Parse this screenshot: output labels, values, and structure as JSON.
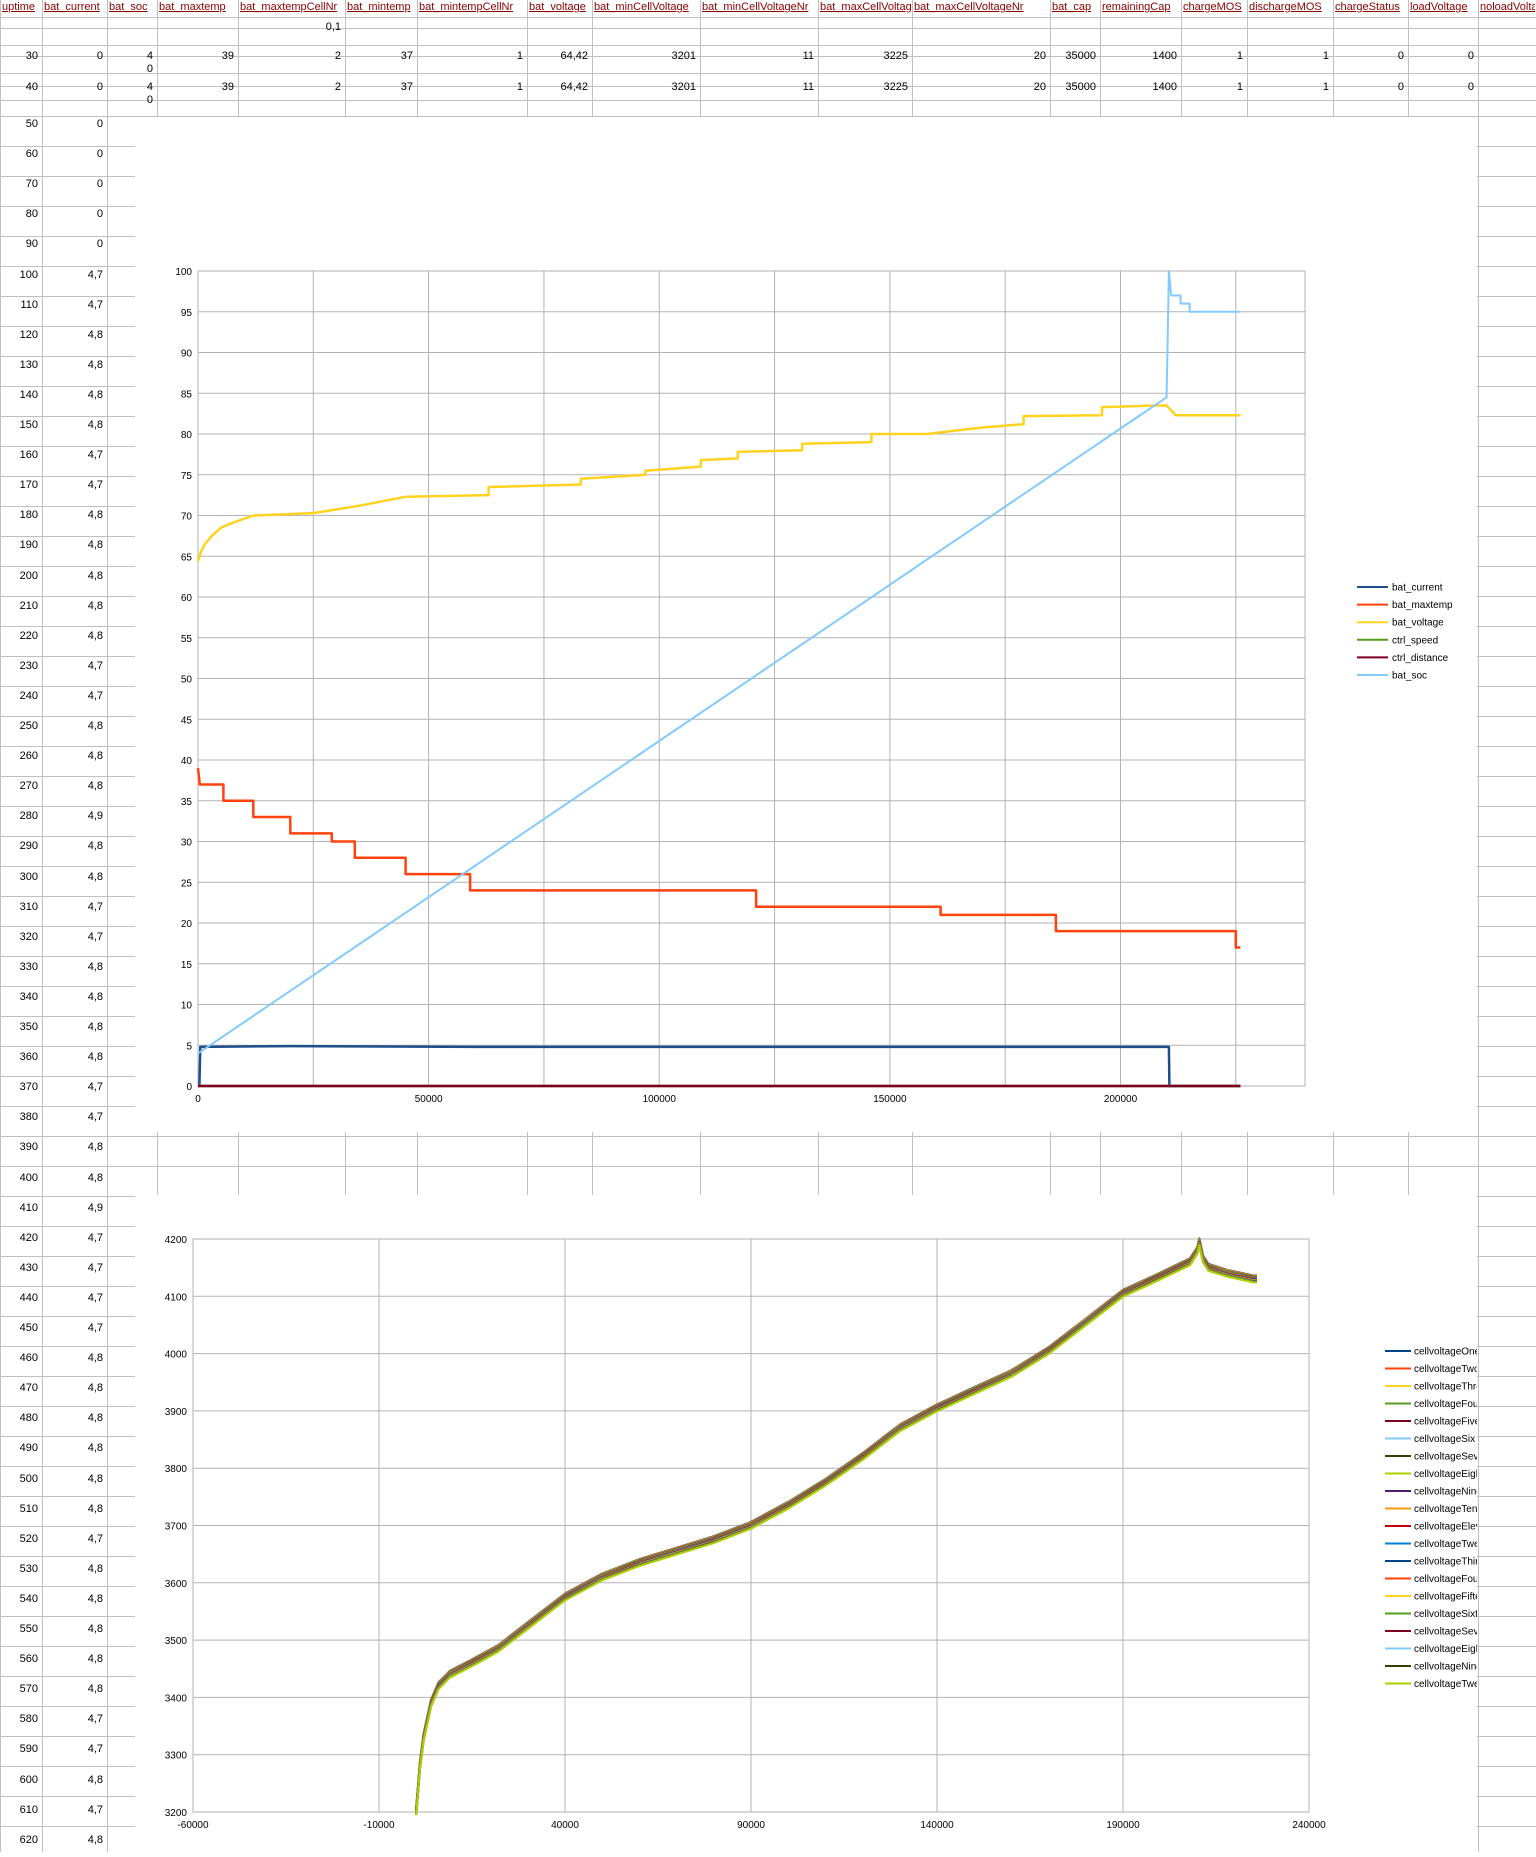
{
  "headers": [
    "uptime",
    "bat_current",
    "bat_soc",
    "bat_maxtemp",
    "bat_maxtempCellNr",
    "bat_mintemp",
    "bat_mintempCellNr",
    "bat_voltage",
    "bat_minCellVoltage",
    "bat_minCellVoltageNr",
    "bat_maxCellVoltage",
    "bat_maxCellVoltageNr",
    "bat_cap",
    "remainingCap",
    "chargeMOS",
    "dischargeMOS",
    "chargeStatus",
    "loadVoltage",
    "noloadVolta"
  ],
  "top_rows": [
    [
      "",
      "",
      "",
      "",
      "0,1",
      "",
      "",
      "",
      "",
      "",
      "",
      "",
      "",
      "",
      "",
      "",
      "",
      "",
      ""
    ],
    [
      "30",
      "0",
      "4",
      "39",
      "2",
      "37",
      "1",
      "64,42",
      "3201",
      "11",
      "3225",
      "20",
      "35000",
      "1400",
      "1",
      "1",
      "0",
      "0",
      ""
    ],
    [
      "",
      "",
      "0",
      "",
      "",
      "",
      "",
      "",
      "",
      "",
      "",
      "",
      "",
      "",
      "",
      "",
      "",
      "",
      ""
    ],
    [
      "40",
      "0",
      "4",
      "39",
      "2",
      "37",
      "1",
      "64,42",
      "3201",
      "11",
      "3225",
      "20",
      "35000",
      "1400",
      "1",
      "1",
      "0",
      "0",
      ""
    ],
    [
      "",
      "",
      "0",
      "",
      "",
      "",
      "",
      "",
      "",
      "",
      "",
      "",
      "",
      "",
      "",
      "",
      "",
      "",
      ""
    ]
  ],
  "left_rows": [
    [
      "50",
      "0"
    ],
    [
      "60",
      "0"
    ],
    [
      "70",
      "0"
    ],
    [
      "80",
      "0"
    ],
    [
      "90",
      "0"
    ],
    [
      "100",
      "4,7"
    ],
    [
      "110",
      "4,7"
    ],
    [
      "120",
      "4,8"
    ],
    [
      "130",
      "4,8"
    ],
    [
      "140",
      "4,8"
    ],
    [
      "150",
      "4,8"
    ],
    [
      "160",
      "4,7"
    ],
    [
      "170",
      "4,7"
    ],
    [
      "180",
      "4,8"
    ],
    [
      "190",
      "4,8"
    ],
    [
      "200",
      "4,8"
    ],
    [
      "210",
      "4,8"
    ],
    [
      "220",
      "4,8"
    ],
    [
      "230",
      "4,7"
    ],
    [
      "240",
      "4,7"
    ],
    [
      "250",
      "4,8"
    ],
    [
      "260",
      "4,8"
    ],
    [
      "270",
      "4,8"
    ],
    [
      "280",
      "4,9"
    ],
    [
      "290",
      "4,8"
    ],
    [
      "300",
      "4,8"
    ],
    [
      "310",
      "4,7"
    ],
    [
      "320",
      "4,7"
    ],
    [
      "330",
      "4,8"
    ],
    [
      "340",
      "4,8"
    ],
    [
      "350",
      "4,8"
    ],
    [
      "360",
      "4,8"
    ],
    [
      "370",
      "4,7"
    ],
    [
      "380",
      "4,7"
    ],
    [
      "390",
      "4,8"
    ],
    [
      "400",
      "4,8"
    ],
    [
      "410",
      "4,9"
    ],
    [
      "420",
      "4,7"
    ],
    [
      "430",
      "4,7"
    ],
    [
      "440",
      "4,7"
    ],
    [
      "450",
      "4,7"
    ],
    [
      "460",
      "4,8"
    ],
    [
      "470",
      "4,8"
    ],
    [
      "480",
      "4,8"
    ],
    [
      "490",
      "4,8"
    ],
    [
      "500",
      "4,8"
    ],
    [
      "510",
      "4,8"
    ],
    [
      "520",
      "4,7"
    ],
    [
      "530",
      "4,8"
    ],
    [
      "540",
      "4,8"
    ],
    [
      "550",
      "4,8"
    ],
    [
      "560",
      "4,8"
    ],
    [
      "570",
      "4,8"
    ],
    [
      "580",
      "4,7"
    ],
    [
      "590",
      "4,7"
    ],
    [
      "600",
      "4,8"
    ],
    [
      "610",
      "4,7"
    ],
    [
      "620",
      "4,8"
    ]
  ],
  "colors": {
    "grid": "#c0c0c0",
    "chart_grid": "#b3b3b3",
    "header_text": "#8b0000"
  },
  "chart_data": [
    {
      "type": "line",
      "xlim": [
        0,
        240000
      ],
      "ylim": [
        0,
        100
      ],
      "xticks": [
        "0",
        "50000",
        "100000",
        "150000",
        "200000"
      ],
      "yticks": [
        "0",
        "5",
        "10",
        "15",
        "20",
        "25",
        "30",
        "35",
        "40",
        "45",
        "50",
        "55",
        "60",
        "65",
        "70",
        "75",
        "80",
        "85",
        "90",
        "95",
        "100"
      ],
      "grid": true,
      "legend_position": "right",
      "series": [
        {
          "name": "bat_current",
          "color": "#1f4e8c",
          "points": [
            [
              0,
              0
            ],
            [
              300,
              0
            ],
            [
              500,
              4.8
            ],
            [
              20000,
              4.9
            ],
            [
              60000,
              4.8
            ],
            [
              120000,
              4.8
            ],
            [
              180000,
              4.8
            ],
            [
              210500,
              4.8
            ],
            [
              210600,
              0
            ],
            [
              226000,
              0
            ]
          ]
        },
        {
          "name": "bat_maxtemp",
          "color": "#ff420e",
          "points": [
            [
              0,
              39
            ],
            [
              400,
              37
            ],
            [
              5500,
              37
            ],
            [
              5500,
              35
            ],
            [
              12000,
              35
            ],
            [
              12000,
              33
            ],
            [
              20000,
              33
            ],
            [
              20000,
              31
            ],
            [
              29000,
              31
            ],
            [
              29000,
              30
            ],
            [
              34000,
              30
            ],
            [
              34000,
              28
            ],
            [
              45000,
              28
            ],
            [
              45000,
              26
            ],
            [
              59000,
              26
            ],
            [
              59000,
              24
            ],
            [
              121000,
              24
            ],
            [
              121000,
              22
            ],
            [
              161000,
              22
            ],
            [
              161000,
              21
            ],
            [
              186000,
              21
            ],
            [
              186000,
              19
            ],
            [
              225000,
              19
            ],
            [
              225000,
              17
            ],
            [
              226000,
              17
            ]
          ]
        },
        {
          "name": "bat_voltage",
          "color": "#ffd320",
          "points": [
            [
              0,
              64.4
            ],
            [
              600,
              65.5
            ],
            [
              1500,
              66.5
            ],
            [
              3000,
              67.5
            ],
            [
              5000,
              68.5
            ],
            [
              7000,
              69
            ],
            [
              12000,
              70
            ],
            [
              25000,
              70.3
            ],
            [
              35000,
              71.2
            ],
            [
              45000,
              72.3
            ],
            [
              63000,
              72.5
            ],
            [
              63000,
              73.5
            ],
            [
              83000,
              73.8
            ],
            [
              83000,
              74.5
            ],
            [
              97000,
              75
            ],
            [
              97000,
              75.5
            ],
            [
              109000,
              76
            ],
            [
              109000,
              76.8
            ],
            [
              117000,
              77
            ],
            [
              117000,
              77.8
            ],
            [
              131000,
              78
            ],
            [
              131000,
              78.8
            ],
            [
              146000,
              79
            ],
            [
              146000,
              80
            ],
            [
              158000,
              80
            ],
            [
              170000,
              80.8
            ],
            [
              179000,
              81.2
            ],
            [
              179000,
              82.2
            ],
            [
              196000,
              82.3
            ],
            [
              196000,
              83.3
            ],
            [
              208000,
              83.5
            ],
            [
              210000,
              83.5
            ],
            [
              212000,
              82.3
            ],
            [
              226000,
              82.3
            ]
          ]
        },
        {
          "name": "ctrl_speed",
          "color": "#579d1c",
          "points": [
            [
              0,
              0
            ],
            [
              226000,
              0
            ]
          ]
        },
        {
          "name": "ctrl_distance",
          "color": "#7e0021",
          "points": [
            [
              0,
              0
            ],
            [
              226000,
              0
            ]
          ]
        },
        {
          "name": "bat_soc",
          "color": "#83caff",
          "points": [
            [
              0,
              4
            ],
            [
              210000,
              84.5
            ],
            [
              210500,
              100
            ],
            [
              211000,
              97
            ],
            [
              213000,
              97
            ],
            [
              213000,
              96
            ],
            [
              215000,
              96
            ],
            [
              215000,
              95
            ],
            [
              226000,
              95
            ]
          ]
        }
      ]
    },
    {
      "type": "line",
      "xlim": [
        -60000,
        240000
      ],
      "ylim": [
        3200,
        4200
      ],
      "xticks": [
        "-60000",
        "-10000",
        "40000",
        "90000",
        "140000",
        "190000",
        "240000"
      ],
      "yticks": [
        "3200",
        "3300",
        "3400",
        "3500",
        "3600",
        "3700",
        "3800",
        "3900",
        "4000",
        "4100",
        "4200"
      ],
      "grid": true,
      "legend_position": "right",
      "curve": [
        [
          0,
          3200
        ],
        [
          500,
          3240
        ],
        [
          1000,
          3280
        ],
        [
          2000,
          3330
        ],
        [
          4000,
          3390
        ],
        [
          6000,
          3420
        ],
        [
          9000,
          3440
        ],
        [
          15000,
          3460
        ],
        [
          22000,
          3485
        ],
        [
          30000,
          3525
        ],
        [
          40000,
          3575
        ],
        [
          50000,
          3610
        ],
        [
          60000,
          3635
        ],
        [
          70000,
          3655
        ],
        [
          80000,
          3675
        ],
        [
          90000,
          3700
        ],
        [
          100000,
          3735
        ],
        [
          110000,
          3775
        ],
        [
          120000,
          3820
        ],
        [
          130000,
          3870
        ],
        [
          140000,
          3905
        ],
        [
          150000,
          3935
        ],
        [
          160000,
          3965
        ],
        [
          170000,
          4005
        ],
        [
          180000,
          4055
        ],
        [
          190000,
          4105
        ],
        [
          200000,
          4135
        ],
        [
          208000,
          4160
        ],
        [
          210000,
          4180
        ],
        [
          210500,
          4195
        ],
        [
          211500,
          4165
        ],
        [
          213000,
          4150
        ],
        [
          218000,
          4140
        ],
        [
          225000,
          4130
        ],
        [
          226000,
          4130
        ]
      ],
      "series": [
        {
          "name": "cellvoltageOne",
          "color": "#004586"
        },
        {
          "name": "cellvoltageTwo",
          "color": "#ff420e"
        },
        {
          "name": "cellvoltageThree",
          "color": "#ffd320"
        },
        {
          "name": "cellvoltageFour",
          "color": "#579d1c"
        },
        {
          "name": "cellvoltageFive",
          "color": "#7e0021"
        },
        {
          "name": "cellvoltageSix",
          "color": "#83caff"
        },
        {
          "name": "cellvoltageSeven",
          "color": "#314004"
        },
        {
          "name": "cellvoltageEight",
          "color": "#aecf00"
        },
        {
          "name": "cellvoltageNine",
          "color": "#4b1f6f"
        },
        {
          "name": "cellvoltageTen",
          "color": "#ff950e"
        },
        {
          "name": "cellvoltageEleven",
          "color": "#c5000b"
        },
        {
          "name": "cellvoltageTwelve",
          "color": "#0084d1"
        },
        {
          "name": "cellvoltageThirteen",
          "color": "#004586"
        },
        {
          "name": "cellvoltageFourteen",
          "color": "#ff420e"
        },
        {
          "name": "cellvoltageFifteen",
          "color": "#ffd320"
        },
        {
          "name": "cellvoltageSixteen",
          "color": "#579d1c"
        },
        {
          "name": "cellvoltageSeventeen",
          "color": "#7e0021"
        },
        {
          "name": "cellvoltageEighteen",
          "color": "#83caff"
        },
        {
          "name": "cellvoltageNineteen",
          "color": "#314004"
        },
        {
          "name": "cellvoltageTwenty",
          "color": "#aecf00"
        }
      ]
    }
  ]
}
